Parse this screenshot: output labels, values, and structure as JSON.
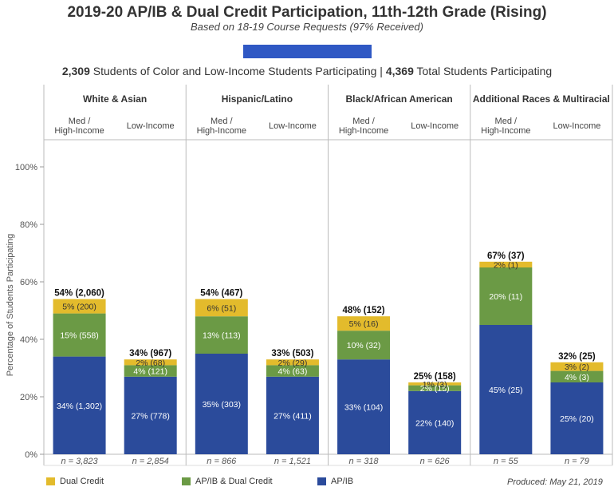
{
  "title": "2019-20 AP/IB & Dual Credit Participation, 11th-12th Grade (Rising)",
  "subtitle": "Based on 18-19 Course Requests (97% Received)",
  "summary": {
    "soc_count": "2,309",
    "soc_text": " Students of Color and Low-Income Students Participating | ",
    "total_count": "4,369",
    "total_text": " Total Students Participating"
  },
  "produced": "Produced: May 21, 2019",
  "colors": {
    "dual_credit": "#e3bb2c",
    "apib_dual": "#6b9a45",
    "apib": "#2b4b9b",
    "accent_rect": "#2f58c4"
  },
  "chart_data": {
    "type": "bar",
    "stacked": true,
    "ylabel": "Percentage of Students Participating",
    "ylim": [
      0,
      100
    ],
    "yticks": [
      "0%",
      "20%",
      "40%",
      "60%",
      "80%",
      "100%"
    ],
    "grid": false,
    "legend_position": "bottom",
    "groups": [
      {
        "name": "White & Asian",
        "subgroups": [
          "Med /\nHigh-Income",
          "Low-Income"
        ]
      },
      {
        "name": "Hispanic/Latino",
        "subgroups": [
          "Med /\nHigh-Income",
          "Low-Income"
        ]
      },
      {
        "name": "Black/African American",
        "subgroups": [
          "Med /\nHigh-Income",
          "Low-Income"
        ]
      },
      {
        "name": "Additional Races & Multiracial",
        "subgroups": [
          "Med /\nHigh-Income",
          "Low-Income"
        ]
      }
    ],
    "bars": [
      {
        "group": "White & Asian",
        "subgroup": "Med / High-Income",
        "total_label": "54% (2,060)",
        "n_label": "n = 3,823",
        "apib": 34,
        "apib_label": "34% (1,302)",
        "apib_dual": 15,
        "apib_dual_label": "15% (558)",
        "dual": 5,
        "dual_label": "5% (200)"
      },
      {
        "group": "White & Asian",
        "subgroup": "Low-Income",
        "total_label": "34% (967)",
        "n_label": "n = 2,854",
        "apib": 27,
        "apib_label": "27% (778)",
        "apib_dual": 4,
        "apib_dual_label": "4% (121)",
        "dual": 2,
        "dual_label": "2% (68)"
      },
      {
        "group": "Hispanic/Latino",
        "subgroup": "Med / High-Income",
        "total_label": "54% (467)",
        "n_label": "n = 866",
        "apib": 35,
        "apib_label": "35% (303)",
        "apib_dual": 13,
        "apib_dual_label": "13% (113)",
        "dual": 6,
        "dual_label": "6% (51)"
      },
      {
        "group": "Hispanic/Latino",
        "subgroup": "Low-Income",
        "total_label": "33% (503)",
        "n_label": "n = 1,521",
        "apib": 27,
        "apib_label": "27% (411)",
        "apib_dual": 4,
        "apib_dual_label": "4% (63)",
        "dual": 2,
        "dual_label": "2% (29)"
      },
      {
        "group": "Black/African American",
        "subgroup": "Med / High-Income",
        "total_label": "48% (152)",
        "n_label": "n = 318",
        "apib": 33,
        "apib_label": "33% (104)",
        "apib_dual": 10,
        "apib_dual_label": "10% (32)",
        "dual": 5,
        "dual_label": "5% (16)"
      },
      {
        "group": "Black/African American",
        "subgroup": "Low-Income",
        "total_label": "25% (158)",
        "n_label": "n = 626",
        "apib": 22,
        "apib_label": "22% (140)",
        "apib_dual": 2,
        "apib_dual_label": "2% (15)",
        "dual": 1,
        "dual_label": "1% (3)"
      },
      {
        "group": "Additional Races & Multiracial",
        "subgroup": "Med / High-Income",
        "total_label": "67% (37)",
        "n_label": "n = 55",
        "apib": 45,
        "apib_label": "45% (25)",
        "apib_dual": 20,
        "apib_dual_label": "20% (11)",
        "dual": 2,
        "dual_label": "2% (1)"
      },
      {
        "group": "Additional Races & Multiracial",
        "subgroup": "Low-Income",
        "total_label": "32% (25)",
        "n_label": "n = 79",
        "apib": 25,
        "apib_label": "25% (20)",
        "apib_dual": 4,
        "apib_dual_label": "4% (3)",
        "dual": 3,
        "dual_label": "3% (2)"
      }
    ],
    "legend": [
      {
        "key": "dual",
        "label": "Dual Credit"
      },
      {
        "key": "apib_dual",
        "label": "AP/IB & Dual Credit"
      },
      {
        "key": "apib",
        "label": "AP/IB"
      }
    ]
  }
}
